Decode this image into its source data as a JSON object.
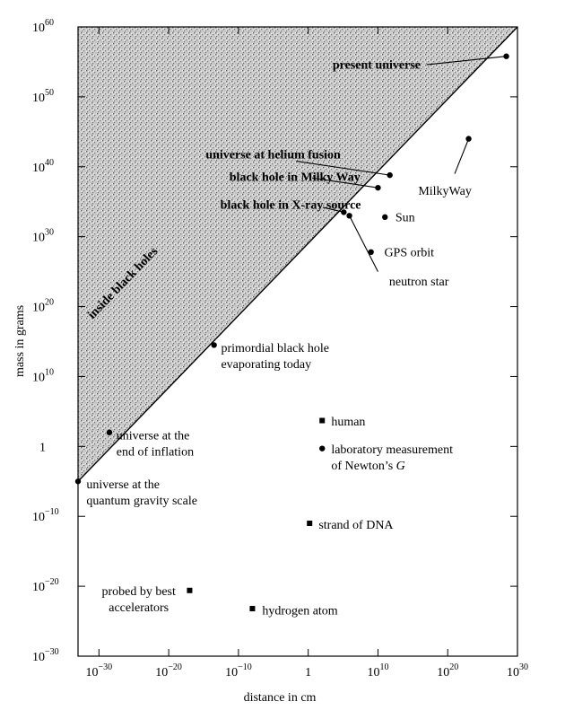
{
  "chart_data": {
    "type": "scatter",
    "title": "",
    "xlabel": "distance in cm",
    "ylabel": "mass in grams",
    "xscale": "log",
    "yscale": "log",
    "x_exp_range": [
      -33,
      30
    ],
    "y_exp_range": [
      -30,
      60
    ],
    "x_ticks": [
      {
        "base": "10",
        "exp": "−30",
        "value_exp": -30
      },
      {
        "base": "10",
        "exp": "−20",
        "value_exp": -20
      },
      {
        "base": "10",
        "exp": "−10",
        "value_exp": -10
      },
      {
        "base": "1",
        "exp": "",
        "value_exp": 0
      },
      {
        "base": "10",
        "exp": "10",
        "value_exp": 10
      },
      {
        "base": "10",
        "exp": "20",
        "value_exp": 20
      },
      {
        "base": "10",
        "exp": "30",
        "value_exp": 30
      }
    ],
    "y_ticks": [
      {
        "base": "10",
        "exp": "60",
        "value_exp": 60
      },
      {
        "base": "10",
        "exp": "50",
        "value_exp": 50
      },
      {
        "base": "10",
        "exp": "40",
        "value_exp": 40
      },
      {
        "base": "10",
        "exp": "30",
        "value_exp": 30
      },
      {
        "base": "10",
        "exp": "20",
        "value_exp": 20
      },
      {
        "base": "10",
        "exp": "10",
        "value_exp": 10
      },
      {
        "base": "1",
        "exp": "",
        "value_exp": 0
      },
      {
        "base": "10",
        "exp": "−10",
        "value_exp": -10
      },
      {
        "base": "10",
        "exp": "−20",
        "value_exp": -20
      },
      {
        "base": "10",
        "exp": "−30",
        "value_exp": -30
      }
    ],
    "region_label": "inside black holes",
    "boundary_line": {
      "from": [
        -33,
        -5
      ],
      "to": [
        30,
        60
      ]
    },
    "points": [
      {
        "id": "present-universe",
        "lx": 28.4,
        "ly": 55.8,
        "marker": "circle",
        "label": [
          "present universe"
        ],
        "bold": true,
        "tx": 3.5,
        "ty": 54.0,
        "anchor": "start",
        "leader": [
          17.0,
          54.6
        ]
      },
      {
        "id": "universe-helium-fusion",
        "lx": 11.7,
        "ly": 38.8,
        "marker": "circle",
        "label": [
          "universe at helium fusion"
        ],
        "bold": true,
        "tx": -14.7,
        "ty": 41.2,
        "anchor": "start",
        "leader": [
          -1.7,
          40.8
        ]
      },
      {
        "id": "black-hole-milky-way",
        "lx": 10.0,
        "ly": 37.0,
        "marker": "circle",
        "label": [
          "black hole in Milky Way"
        ],
        "bold": true,
        "tx": -11.3,
        "ty": 38.0,
        "anchor": "start",
        "leader": [
          0.6,
          38.4
        ]
      },
      {
        "id": "black-hole-xray",
        "lx": 5.1,
        "ly": 33.5,
        "marker": "circle",
        "label": [
          "black hole in X-ray source"
        ],
        "bold": true,
        "tx": -12.6,
        "ty": 34.0,
        "anchor": "start",
        "leader": [
          2.1,
          34.2
        ]
      },
      {
        "id": "neutron-star",
        "lx": 5.9,
        "ly": 33.0,
        "marker": "circle",
        "label": [
          "neutron star"
        ],
        "bold": false,
        "tx": 11.6,
        "ty": 23.0,
        "anchor": "start",
        "leader": [
          10.0,
          25.0
        ]
      },
      {
        "id": "milky-way",
        "lx": 23.0,
        "ly": 44.0,
        "marker": "circle",
        "label": [
          "MilkyWay"
        ],
        "bold": false,
        "tx": 19.6,
        "ty": 36.0,
        "anchor": "middle",
        "leader": [
          21.0,
          39.0
        ]
      },
      {
        "id": "sun",
        "lx": 11.0,
        "ly": 32.8,
        "marker": "circle",
        "label": [
          "Sun"
        ],
        "bold": false,
        "tx": 12.5,
        "ty": 32.2,
        "anchor": "start"
      },
      {
        "id": "gps-orbit",
        "lx": 9.0,
        "ly": 27.8,
        "marker": "circle",
        "label": [
          "GPS orbit"
        ],
        "bold": false,
        "tx": 10.9,
        "ty": 27.2,
        "anchor": "start"
      },
      {
        "id": "primordial-black-hole",
        "lx": -13.5,
        "ly": 14.5,
        "marker": "circle",
        "label": [
          "primordial black hole",
          "evaporating today"
        ],
        "bold": false,
        "tx": -12.5,
        "ty": 13.5,
        "anchor": "start"
      },
      {
        "id": "universe-end-inflation",
        "lx": -28.5,
        "ly": 2.0,
        "marker": "circle",
        "label": [
          "universe at the",
          "end of inflation"
        ],
        "bold": false,
        "tx": -27.5,
        "ty": 1.0,
        "anchor": "start"
      },
      {
        "id": "universe-quantum-gravity",
        "lx": -33.0,
        "ly": -5.0,
        "marker": "circle",
        "label": [
          "universe at the",
          "quantum gravity scale"
        ],
        "bold": false,
        "tx": -31.8,
        "ty": -6.0,
        "anchor": "start"
      },
      {
        "id": "human",
        "lx": 2.0,
        "ly": 3.7,
        "marker": "square",
        "label": [
          "human"
        ],
        "bold": false,
        "tx": 3.3,
        "ty": 3.0,
        "anchor": "start"
      },
      {
        "id": "newtons-g",
        "lx": 2.0,
        "ly": -0.3,
        "marker": "circle",
        "label": [
          "laboratory measurement",
          "of Newton’s G"
        ],
        "bold": false,
        "tx": 3.3,
        "ty": -1.0,
        "anchor": "start"
      },
      {
        "id": "strand-of-dna",
        "lx": 0.2,
        "ly": -11.0,
        "marker": "square",
        "label": [
          "strand of DNA"
        ],
        "bold": false,
        "tx": 1.5,
        "ty": -11.8,
        "anchor": "start"
      },
      {
        "id": "best-accelerators",
        "lx": -17.0,
        "ly": -20.6,
        "marker": "square",
        "label": [
          "probed by best",
          "accelerators"
        ],
        "bold": false,
        "tx": -24.3,
        "ty": -21.3,
        "anchor": "middle"
      },
      {
        "id": "hydrogen-atom",
        "lx": -8.0,
        "ly": -23.2,
        "marker": "square",
        "label": [
          "hydrogen atom"
        ],
        "bold": false,
        "tx": -6.6,
        "ty": -24.0,
        "anchor": "start"
      }
    ]
  }
}
